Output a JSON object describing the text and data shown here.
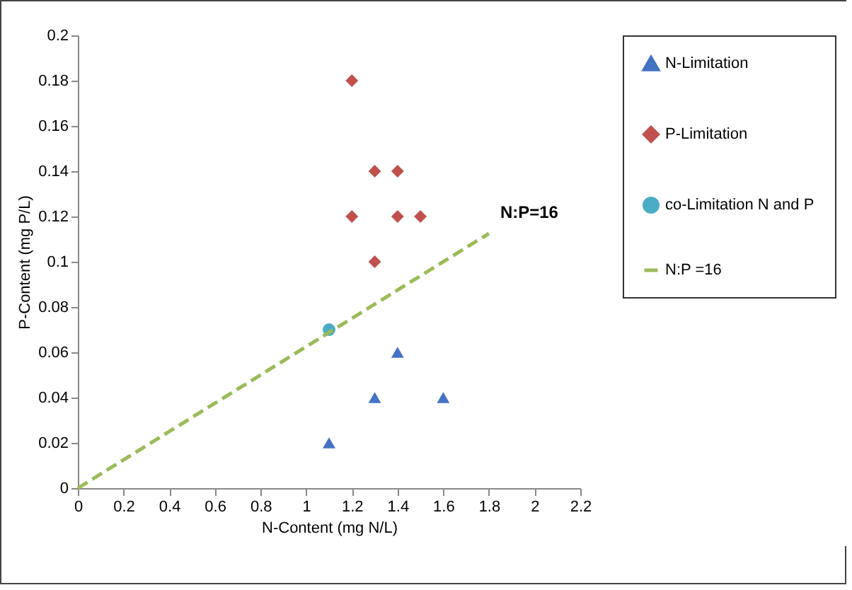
{
  "chart_data": {
    "type": "scatter",
    "xlabel": "N-Content (mg N/L)",
    "ylabel": "P-Content (mg P/L)",
    "xlim": [
      0,
      2.2
    ],
    "xticks": [
      0,
      0.2,
      0.4,
      0.6,
      0.8,
      1,
      1.2,
      1.4,
      1.6,
      1.8,
      2,
      2.2
    ],
    "ylim": [
      0,
      0.2
    ],
    "yticks": [
      0,
      0.02,
      0.04,
      0.06,
      0.08,
      0.1,
      0.12,
      0.14,
      0.16,
      0.18,
      0.2
    ],
    "grid": false,
    "legend": "right",
    "series": [
      {
        "name": "N-Limitation",
        "color": "#4472c4",
        "marker": "triangle",
        "x": [
          1.1,
          1.3,
          1.4,
          1.6
        ],
        "values": [
          0.02,
          0.04,
          0.06,
          0.04
        ]
      },
      {
        "name": "P-Limitation",
        "color": "#c0504d",
        "marker": "diamond",
        "x": [
          1.2,
          1.3,
          1.4,
          1.2,
          1.4,
          1.5,
          1.3
        ],
        "values": [
          0.18,
          0.14,
          0.14,
          0.12,
          0.12,
          0.12,
          0.1
        ]
      },
      {
        "name": "co-Limitation N and P",
        "color": "#4bacc6",
        "marker": "circle",
        "x": [
          1.1
        ],
        "values": [
          0.07
        ]
      },
      {
        "name": "N:P =16",
        "type": "line",
        "color": "#9bbb59",
        "line_style": "dashed",
        "marker": "none",
        "x": [
          0,
          1.8
        ],
        "values": [
          0,
          0.1125
        ]
      }
    ],
    "annotations": [
      {
        "text": "N:P=16",
        "x": 1.8,
        "y": 0.1125
      }
    ]
  }
}
